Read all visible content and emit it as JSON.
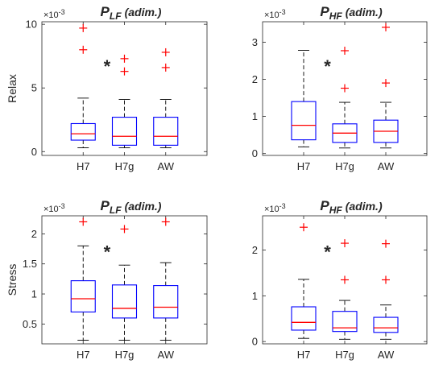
{
  "figure": {
    "row_labels": [
      "Relax",
      "Stress"
    ],
    "colors": {
      "box": "#0000FF",
      "median": "#FF0000",
      "outlier": "#FF0000",
      "whisker": "#000000",
      "axis": "#262626"
    }
  },
  "chart_data": [
    {
      "type": "box",
      "title": {
        "main": "P",
        "sub": "LF",
        "unit": "(adim.)"
      },
      "ylabel": "Relax",
      "exponent_label": "×10-3",
      "categories": [
        "H7",
        "H7g",
        "AW"
      ],
      "yticks": [
        0,
        5,
        10
      ],
      "ylim": [
        -0.3,
        10.2
      ],
      "significance": {
        "text": "*",
        "position": "between H7 and H7g, upper"
      },
      "boxes": [
        {
          "q1": 0.9,
          "median": 1.4,
          "q3": 2.2,
          "whisker_low": 0.3,
          "whisker_high": 4.2,
          "outliers": [
            8.0,
            9.7
          ]
        },
        {
          "q1": 0.5,
          "median": 1.2,
          "q3": 2.7,
          "whisker_low": 0.3,
          "whisker_high": 4.1,
          "outliers": [
            6.3,
            7.3
          ]
        },
        {
          "q1": 0.5,
          "median": 1.2,
          "q3": 2.7,
          "whisker_low": 0.3,
          "whisker_high": 4.1,
          "outliers": [
            6.6,
            7.8
          ]
        }
      ]
    },
    {
      "type": "box",
      "title": {
        "main": "P",
        "sub": "HF",
        "unit": "(adim.)"
      },
      "ylabel": "",
      "exponent_label": "×10-3",
      "categories": [
        "H7",
        "H7g",
        "AW"
      ],
      "yticks": [
        0,
        1,
        2,
        3
      ],
      "ylim": [
        -0.05,
        3.55
      ],
      "significance": {
        "text": "*",
        "position": "between H7 and H7g, upper"
      },
      "boxes": [
        {
          "q1": 0.37,
          "median": 0.76,
          "q3": 1.4,
          "whisker_low": 0.18,
          "whisker_high": 2.78,
          "outliers": []
        },
        {
          "q1": 0.3,
          "median": 0.55,
          "q3": 0.8,
          "whisker_low": 0.15,
          "whisker_high": 1.38,
          "outliers": [
            1.76,
            2.77
          ]
        },
        {
          "q1": 0.3,
          "median": 0.6,
          "q3": 0.9,
          "whisker_low": 0.15,
          "whisker_high": 1.38,
          "outliers": [
            1.9,
            3.4
          ]
        }
      ]
    },
    {
      "type": "box",
      "title": {
        "main": "P",
        "sub": "LF",
        "unit": "(adim.)"
      },
      "ylabel": "Stress",
      "exponent_label": "×10-3",
      "categories": [
        "H7",
        "H7g",
        "AW"
      ],
      "yticks": [
        0.5,
        1,
        1.5,
        2
      ],
      "yticklabels": [
        "0.5",
        "1",
        "1.5",
        "2"
      ],
      "ylim": [
        0.17,
        2.3
      ],
      "significance": {
        "text": "*",
        "position": "between H7 and H7g, middle"
      },
      "boxes": [
        {
          "q1": 0.7,
          "median": 0.92,
          "q3": 1.22,
          "whisker_low": 0.23,
          "whisker_high": 1.8,
          "outliers": [
            2.2
          ]
        },
        {
          "q1": 0.6,
          "median": 0.76,
          "q3": 1.15,
          "whisker_low": 0.23,
          "whisker_high": 1.48,
          "outliers": [
            2.08
          ]
        },
        {
          "q1": 0.6,
          "median": 0.78,
          "q3": 1.14,
          "whisker_low": 0.23,
          "whisker_high": 1.52,
          "outliers": [
            2.2
          ]
        }
      ]
    },
    {
      "type": "box",
      "title": {
        "main": "P",
        "sub": "HF",
        "unit": "(adim.)"
      },
      "ylabel": "",
      "exponent_label": "×10-3",
      "categories": [
        "H7",
        "H7g",
        "AW"
      ],
      "yticks": [
        0,
        1,
        2
      ],
      "ylim": [
        -0.05,
        2.75
      ],
      "significance": {
        "text": "*",
        "position": "between H7 and H7g, middle"
      },
      "boxes": [
        {
          "q1": 0.25,
          "median": 0.42,
          "q3": 0.76,
          "whisker_low": 0.07,
          "whisker_high": 1.36,
          "outliers": [
            2.5
          ]
        },
        {
          "q1": 0.22,
          "median": 0.3,
          "q3": 0.66,
          "whisker_low": 0.05,
          "whisker_high": 0.9,
          "outliers": [
            1.35,
            2.15
          ]
        },
        {
          "q1": 0.2,
          "median": 0.3,
          "q3": 0.53,
          "whisker_low": 0.05,
          "whisker_high": 0.8,
          "outliers": [
            1.35,
            2.14
          ]
        }
      ]
    }
  ]
}
